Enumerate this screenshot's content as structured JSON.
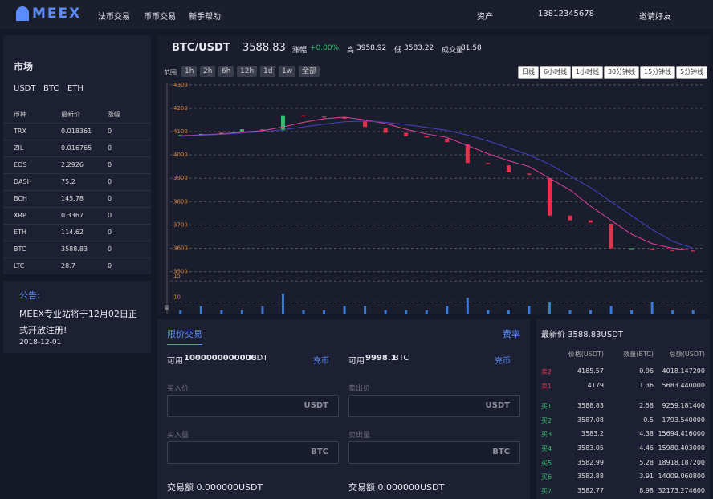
{
  "nav": {
    "logo": "MEEX",
    "links": [
      "法币交易",
      "币币交易",
      "新手帮助"
    ],
    "assets": "资产",
    "user": "13812345678",
    "invite": "邀请好友"
  },
  "market": {
    "title": "市场",
    "tabs": [
      "USDT",
      "BTC",
      "ETH"
    ],
    "headers": [
      "币种",
      "最新价",
      "涨幅"
    ],
    "rows": [
      [
        "TRX",
        "0.018361",
        "0"
      ],
      [
        "ZIL",
        "0.016765",
        "0"
      ],
      [
        "EOS",
        "2.2926",
        "0"
      ],
      [
        "DASH",
        "75.2",
        "0"
      ],
      [
        "BCH",
        "145.78",
        "0"
      ],
      [
        "XRP",
        "0.3367",
        "0"
      ],
      [
        "ETH",
        "114.62",
        "0"
      ],
      [
        "BTC",
        "3588.83",
        "0"
      ],
      [
        "LTC",
        "28.7",
        "0"
      ]
    ]
  },
  "notice": {
    "title": "公告:",
    "text": "MEEX专业站将于12月02日正式开放注册!",
    "date": "2018-12-01"
  },
  "ticker": {
    "pair": "BTC/USDT",
    "price": "3588.83",
    "change_label": "涨幅",
    "change": "+0.00%",
    "high_label": "高",
    "high": "3958.92",
    "low_label": "低",
    "low": "3583.22",
    "volume_label": "成交量",
    "volume": "81.58"
  },
  "ranges": {
    "label": "范围",
    "items": [
      "1h",
      "2h",
      "6h",
      "12h",
      "1d",
      "1w",
      "全部"
    ]
  },
  "intervals": [
    "日线",
    "6小时线",
    "1小时线",
    "30分钟线",
    "15分钟线",
    "5分钟线"
  ],
  "chart": {
    "ylim": [
      3485,
      4320
    ],
    "yticks": [
      3500,
      3600,
      3700,
      3800,
      3900,
      4000,
      4100,
      4200,
      4300
    ],
    "candles": [
      [
        4080,
        4085
      ],
      [
        4085,
        4090
      ],
      [
        4090,
        4095
      ],
      [
        4100,
        4110
      ],
      [
        4110,
        4105
      ],
      [
        4105,
        4170
      ],
      [
        4170,
        4165
      ],
      [
        4165,
        4160
      ],
      [
        4160,
        4155
      ],
      [
        4150,
        4120
      ],
      [
        4115,
        4095
      ],
      [
        4095,
        4080
      ],
      [
        4080,
        4075
      ],
      [
        4070,
        4055
      ],
      [
        4045,
        3965
      ],
      [
        3965,
        3960
      ],
      [
        3955,
        3925
      ],
      [
        3920,
        3915
      ],
      [
        3900,
        3740
      ],
      [
        3740,
        3720
      ],
      [
        3720,
        3710
      ],
      [
        3705,
        3600
      ],
      [
        3600,
        3600
      ],
      [
        3598,
        3592
      ],
      [
        3592,
        3590
      ],
      [
        3590,
        3588
      ]
    ],
    "up_color": "#2fbf6a",
    "down_color": "#e2334d",
    "ma": [
      {
        "color": "#e040a0",
        "values": [
          4082,
          4086,
          4090,
          4098,
          4104,
          4120,
          4140,
          4155,
          4162,
          4150,
          4135,
          4110,
          4090,
          4075,
          4040,
          4005,
          3975,
          3950,
          3900,
          3850,
          3780,
          3720,
          3660,
          3620,
          3600,
          3592
        ]
      },
      {
        "color": "#4a3fc8",
        "values": [
          4080,
          4084,
          4088,
          4094,
          4100,
          4108,
          4120,
          4132,
          4142,
          4145,
          4140,
          4130,
          4118,
          4105,
          4085,
          4060,
          4030,
          4000,
          3960,
          3910,
          3860,
          3800,
          3740,
          3680,
          3630,
          3600
        ]
      }
    ],
    "vol_label": "量",
    "vlim": [
      7,
      16
    ],
    "vticks": [
      10,
      15
    ],
    "volumes": [
      8,
      9,
      8,
      8,
      9,
      12,
      8,
      8,
      9,
      9,
      8,
      8,
      8,
      9,
      11,
      8,
      8,
      9,
      10,
      8,
      8,
      9,
      8,
      10,
      8,
      8
    ],
    "vol_color": "#3a7bd5"
  },
  "trade": {
    "title": "限价交易",
    "fee": "费率",
    "buy_avail_label": "可用",
    "buy_avail": "1000000000000",
    "buy_unit": "USDT",
    "deposit": "充币",
    "sell_avail_label": "可用",
    "sell_avail": "9998.1",
    "sell_unit": "BTC",
    "buy_price": "买入价",
    "sell_price": "卖出价",
    "buy_amount": "买入量",
    "sell_amount": "卖出量",
    "usdt": "USDT",
    "btc": "BTC",
    "buy_total": "交易额 0.000000USDT",
    "sell_total": "交易额 0.000000USDT"
  },
  "orderbook": {
    "latest": "最新价 3588.83USDT",
    "headers": [
      "价格(USDT)",
      "数量(BTC)",
      "总额(USDT)"
    ],
    "rows": [
      [
        "卖2",
        "4185.57",
        "0.96",
        "4018.147200"
      ],
      [
        "卖1",
        "4179",
        "1.36",
        "5683.440000"
      ],
      [
        "买1",
        "3588.83",
        "2.58",
        "9259.181400"
      ],
      [
        "买2",
        "3587.08",
        "0.5",
        "1793.540000"
      ],
      [
        "买3",
        "3583.2",
        "4.38",
        "15694.416000"
      ],
      [
        "买4",
        "3583.05",
        "4.46",
        "15980.403000"
      ],
      [
        "买5",
        "3582.99",
        "5.28",
        "18918.187200"
      ],
      [
        "买6",
        "3582.88",
        "3.91",
        "14009.060800"
      ],
      [
        "买7",
        "3582.77",
        "8.98",
        "32173.274600"
      ]
    ]
  }
}
